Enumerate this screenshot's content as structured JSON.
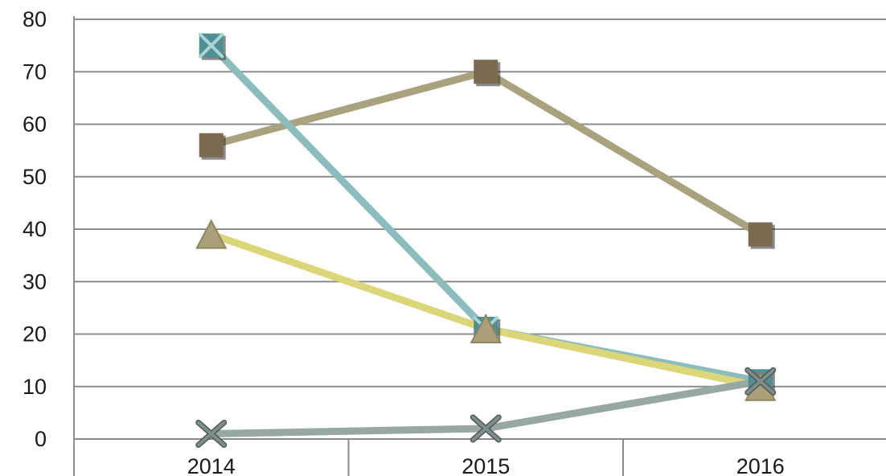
{
  "chart_data": {
    "type": "line",
    "categories": [
      "2014",
      "2015",
      "2016"
    ],
    "ylim": [
      0,
      80
    ],
    "yticks": [
      "0",
      "10",
      "20",
      "30",
      "40",
      "50",
      "60",
      "70",
      "80"
    ],
    "grid": true,
    "series": [
      {
        "marker": "square",
        "line_color": "#a8a37e",
        "marker_color": "#7a6a4f",
        "values": [
          56,
          70,
          39
        ]
      },
      {
        "marker": "x-square",
        "line_color": "#8cbcbc",
        "marker_color": "#4f8f94",
        "values": [
          75,
          21,
          11
        ]
      },
      {
        "marker": "triangle",
        "line_color": "#dcd67a",
        "marker_color": "#a9a07a",
        "values": [
          39,
          21,
          10
        ]
      },
      {
        "marker": "x",
        "line_color": "#97a8a4",
        "marker_color": "#7c8f8c",
        "values": [
          1,
          2,
          11
        ]
      }
    ]
  }
}
